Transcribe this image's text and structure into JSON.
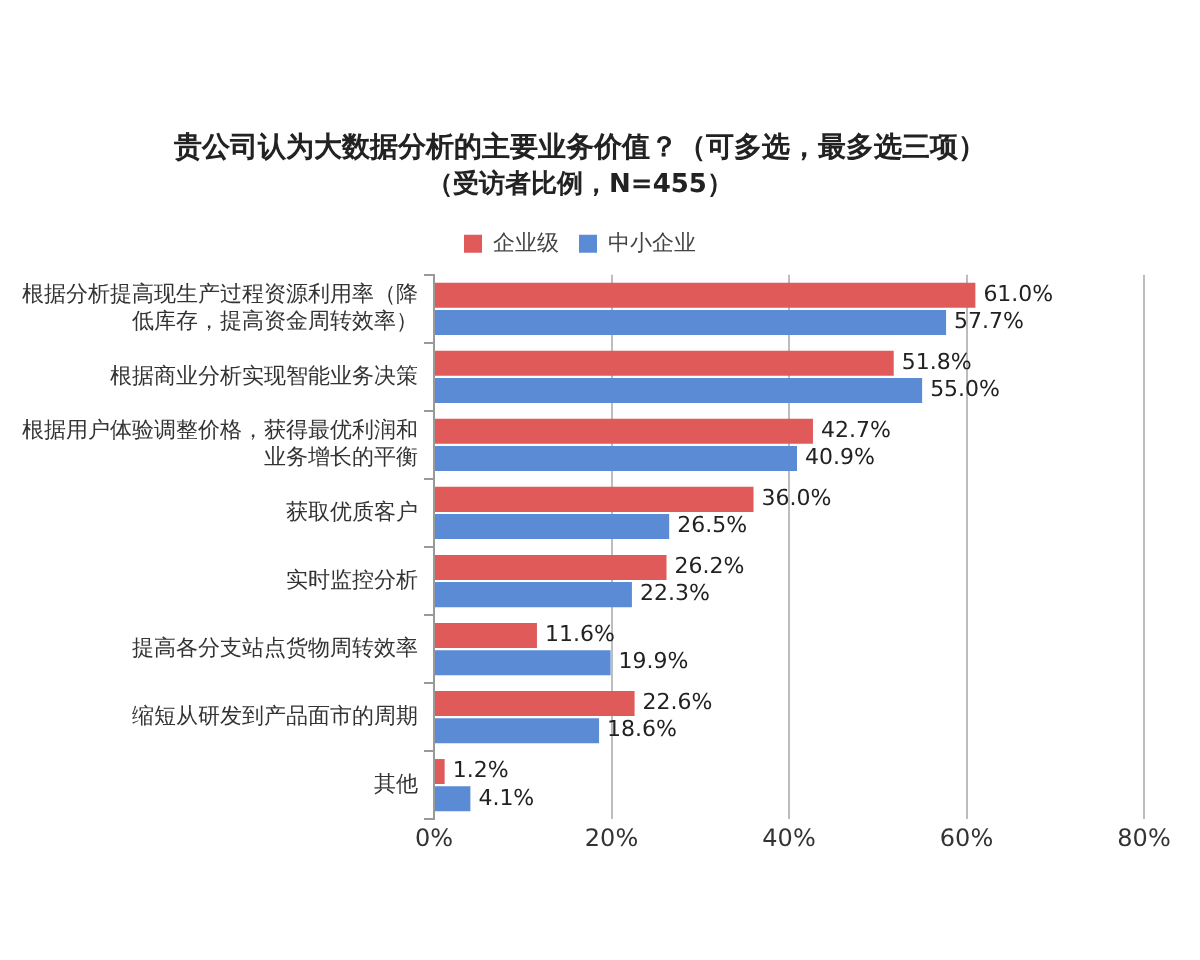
{
  "chart_data": {
    "type": "bar",
    "orientation": "horizontal",
    "title": "贵公司认为大数据分析的主要业务价值？（可多选，最多选三项）",
    "subtitle": "（受访者比例，N=455）",
    "categories": [
      "根据分析提高现生产过程资源利用率（降低库存，提高资金周转效率）",
      "根据商业分析实现智能业务决策",
      "根据用户体验调整价格，获得最优利润和业务增长的平衡",
      "获取优质客户",
      "实时监控分析",
      "提高各分支站点货物周转效率",
      "缩短从研发到产品面市的周期",
      "其他"
    ],
    "series": [
      {
        "name": "企业级",
        "color": "#e05a5a",
        "values": [
          61.0,
          51.8,
          42.7,
          36.0,
          26.2,
          11.6,
          22.6,
          1.2
        ],
        "value_labels": [
          "61.0%",
          "51.8%",
          "42.7%",
          "36.0%",
          "26.2%",
          "11.6%",
          "22.6%",
          "1.2%"
        ]
      },
      {
        "name": "中小企业",
        "color": "#5b8bd4",
        "values": [
          57.7,
          55.0,
          40.9,
          26.5,
          22.3,
          19.9,
          18.6,
          4.1
        ],
        "value_labels": [
          "57.7%",
          "55.0%",
          "40.9%",
          "26.5%",
          "22.3%",
          "19.9%",
          "18.6%",
          "4.1%"
        ]
      }
    ],
    "xlim": [
      0,
      80
    ],
    "xticks": [
      {
        "value": 0,
        "label": "0%"
      },
      {
        "value": 20,
        "label": "20%"
      },
      {
        "value": 40,
        "label": "40%"
      },
      {
        "value": 60,
        "label": "60%"
      },
      {
        "value": 80,
        "label": "80%"
      }
    ],
    "grid": "x",
    "legend": "top"
  }
}
